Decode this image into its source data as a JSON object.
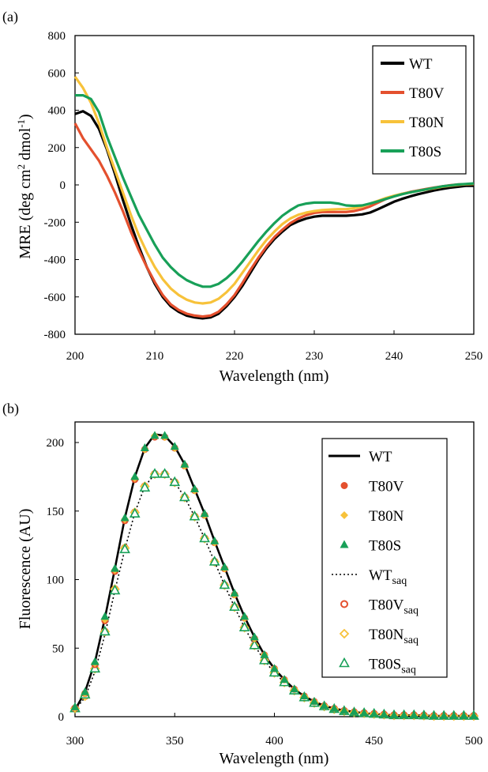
{
  "figure": {
    "panels": [
      {
        "label": "(a)"
      },
      {
        "label": "(b)"
      }
    ]
  },
  "chart_data": [
    {
      "panel": "(a)",
      "type": "line",
      "title": "",
      "xlabel": "Wavelength (nm)",
      "ylabel": "MRE (deg cm2 dmol-1)",
      "ylabel_parts": {
        "base": "MRE (deg cm",
        "sup1": "2",
        "mid": " dmol",
        "sup2": "-1",
        "end": ")"
      },
      "xlim": [
        200,
        250
      ],
      "ylim": [
        -800,
        800
      ],
      "xticks": [
        200,
        210,
        220,
        230,
        240,
        250
      ],
      "yticks": [
        -800,
        -600,
        -400,
        -200,
        0,
        200,
        400,
        600,
        800
      ],
      "grid": false,
      "legend_position": "top-right",
      "x": [
        200,
        201,
        202,
        203,
        204,
        205,
        206,
        207,
        208,
        209,
        210,
        211,
        212,
        213,
        214,
        215,
        216,
        217,
        218,
        219,
        220,
        221,
        222,
        223,
        224,
        225,
        226,
        227,
        228,
        229,
        230,
        231,
        232,
        233,
        234,
        235,
        236,
        237,
        238,
        239,
        240,
        241,
        242,
        243,
        244,
        245,
        246,
        247,
        248,
        249,
        250
      ],
      "series": [
        {
          "name": "WT",
          "color": "#000000",
          "style": "solid",
          "values": [
            380,
            395,
            370,
            300,
            190,
            60,
            -80,
            -210,
            -330,
            -440,
            -530,
            -600,
            -650,
            -680,
            -700,
            -710,
            -715,
            -710,
            -690,
            -650,
            -600,
            -540,
            -470,
            -400,
            -340,
            -290,
            -250,
            -215,
            -195,
            -180,
            -170,
            -165,
            -165,
            -165,
            -165,
            -162,
            -158,
            -148,
            -130,
            -110,
            -90,
            -75,
            -62,
            -50,
            -40,
            -30,
            -22,
            -15,
            -10,
            -5,
            -5
          ]
        },
        {
          "name": "T80V",
          "color": "#e4502e",
          "style": "solid",
          "values": [
            330,
            250,
            190,
            130,
            50,
            -40,
            -140,
            -250,
            -350,
            -440,
            -520,
            -590,
            -640,
            -670,
            -690,
            -700,
            -705,
            -700,
            -680,
            -640,
            -590,
            -525,
            -455,
            -390,
            -330,
            -280,
            -240,
            -205,
            -180,
            -162,
            -150,
            -145,
            -145,
            -145,
            -145,
            -140,
            -130,
            -115,
            -95,
            -75,
            -60,
            -48,
            -38,
            -30,
            -22,
            -15,
            -8,
            -2,
            2,
            4,
            5
          ]
        },
        {
          "name": "T80N",
          "color": "#f7c23a",
          "style": "solid",
          "values": [
            580,
            520,
            440,
            330,
            200,
            80,
            -40,
            -160,
            -270,
            -360,
            -440,
            -505,
            -555,
            -590,
            -615,
            -630,
            -635,
            -630,
            -610,
            -575,
            -530,
            -470,
            -410,
            -350,
            -295,
            -250,
            -210,
            -180,
            -160,
            -148,
            -140,
            -135,
            -132,
            -130,
            -130,
            -125,
            -115,
            -100,
            -85,
            -70,
            -58,
            -48,
            -40,
            -32,
            -25,
            -18,
            -10,
            -5,
            0,
            4,
            5
          ]
        },
        {
          "name": "T80S",
          "color": "#18a058",
          "style": "solid",
          "values": [
            480,
            480,
            460,
            390,
            260,
            150,
            40,
            -60,
            -160,
            -240,
            -320,
            -390,
            -440,
            -480,
            -510,
            -530,
            -545,
            -545,
            -530,
            -500,
            -460,
            -410,
            -355,
            -300,
            -250,
            -205,
            -165,
            -135,
            -110,
            -100,
            -95,
            -95,
            -95,
            -100,
            -110,
            -112,
            -110,
            -100,
            -88,
            -75,
            -62,
            -50,
            -40,
            -32,
            -24,
            -16,
            -8,
            -3,
            2,
            5,
            8
          ]
        }
      ]
    },
    {
      "panel": "(b)",
      "type": "line",
      "title": "",
      "xlabel": "Wavelength (nm)",
      "ylabel": "Fluorescence (AU)",
      "xlim": [
        300,
        500
      ],
      "ylim": [
        0,
        215
      ],
      "xticks": [
        300,
        350,
        400,
        450,
        500
      ],
      "yticks": [
        0,
        50,
        100,
        150,
        200
      ],
      "grid": false,
      "legend_position": "top-right",
      "x": [
        300,
        305,
        310,
        315,
        320,
        325,
        330,
        335,
        340,
        345,
        350,
        355,
        360,
        365,
        370,
        375,
        380,
        385,
        390,
        395,
        400,
        405,
        410,
        415,
        420,
        425,
        430,
        435,
        440,
        445,
        450,
        455,
        460,
        465,
        470,
        475,
        480,
        485,
        490,
        495,
        500
      ],
      "series": [
        {
          "name": "WT",
          "sub": "",
          "color": "#000000",
          "marker": "line-solid",
          "values": [
            5,
            18,
            40,
            72,
            108,
            145,
            175,
            196,
            206,
            205,
            197,
            184,
            166,
            148,
            128,
            109,
            90,
            73,
            58,
            45,
            35,
            27,
            20,
            15,
            11,
            8,
            6,
            4.5,
            3.5,
            2.5,
            2,
            1.5,
            1,
            1,
            1,
            0.8,
            0.5,
            0.5,
            0.5,
            0.5,
            0.5
          ]
        },
        {
          "name": "T80V",
          "sub": "",
          "color": "#e4502e",
          "marker": "filled-circle",
          "values": [
            6,
            17,
            38,
            70,
            106,
            143,
            173,
            195,
            204,
            204,
            196,
            183,
            165,
            147,
            127,
            108,
            89,
            72,
            57,
            45,
            35,
            27,
            20,
            15,
            11,
            8,
            6,
            4.5,
            3.5,
            2.5,
            2,
            1.5,
            1,
            1,
            1,
            0.8,
            0.5,
            0.5,
            0.5,
            0.5,
            0.5
          ]
        },
        {
          "name": "T80N",
          "sub": "",
          "color": "#f7c23a",
          "marker": "filled-diamond",
          "values": [
            6,
            17,
            39,
            71,
            107,
            144,
            174,
            195,
            205,
            204,
            196,
            183,
            165,
            147,
            127,
            108,
            89,
            72,
            57,
            45,
            35,
            27,
            20,
            15,
            11,
            8,
            6,
            4.5,
            3.5,
            2.5,
            2,
            1.5,
            1,
            1,
            1,
            0.8,
            0.5,
            0.5,
            0.5,
            0.5,
            0.5
          ]
        },
        {
          "name": "T80S",
          "sub": "",
          "color": "#18a058",
          "marker": "filled-triangle",
          "values": [
            7,
            18,
            40,
            73,
            108,
            145,
            175,
            196,
            205,
            205,
            197,
            184,
            166,
            148,
            128,
            109,
            90,
            73,
            58,
            45,
            35,
            27,
            20,
            15,
            11,
            8,
            6,
            4.5,
            3.5,
            2.5,
            2,
            1.5,
            1,
            1,
            1,
            0.8,
            0.5,
            0.5,
            0.5,
            0.5,
            0.5
          ]
        },
        {
          "name": "WT",
          "sub": "saq",
          "color": "#000000",
          "marker": "line-dotted",
          "values": [
            5,
            14,
            33,
            60,
            92,
            122,
            149,
            168,
            177,
            177,
            171,
            160,
            146,
            130,
            113,
            96,
            80,
            65,
            52,
            41,
            32,
            25,
            19,
            14,
            10,
            7.5,
            5.5,
            4,
            3,
            2.5,
            2,
            1.5,
            1,
            1,
            1,
            0.8,
            0.5,
            0.5,
            0.5,
            0.5,
            0.5
          ]
        },
        {
          "name": "T80V",
          "sub": "saq",
          "color": "#e4502e",
          "marker": "open-circle",
          "values": [
            6,
            15,
            35,
            62,
            93,
            123,
            149,
            168,
            177,
            177,
            171,
            160,
            146,
            130,
            113,
            96,
            80,
            65,
            52,
            41,
            32,
            25,
            19,
            14,
            10,
            7.5,
            5.5,
            4,
            3,
            2.5,
            2,
            1.5,
            1,
            1,
            1,
            0.8,
            0.5,
            0.5,
            0.5,
            0.5,
            0.5
          ]
        },
        {
          "name": "T80N",
          "sub": "saq",
          "color": "#f7c23a",
          "marker": "open-diamond",
          "values": [
            6,
            15,
            35,
            62,
            93,
            123,
            149,
            168,
            177,
            177,
            171,
            160,
            146,
            130,
            113,
            96,
            80,
            65,
            52,
            41,
            32,
            25,
            19,
            14,
            10,
            7.5,
            5.5,
            4,
            3,
            2.5,
            2,
            1.5,
            1,
            1,
            1,
            0.8,
            0.5,
            0.5,
            0.5,
            0.5,
            0.5
          ]
        },
        {
          "name": "T80S",
          "sub": "saq",
          "color": "#18a058",
          "marker": "open-triangle",
          "values": [
            6,
            16,
            35,
            62,
            92,
            122,
            148,
            167,
            177,
            177,
            171,
            160,
            146,
            130,
            113,
            96,
            80,
            65,
            52,
            41,
            32,
            25,
            19,
            14,
            10,
            7.5,
            5.5,
            4,
            3,
            2.5,
            2,
            1.5,
            1,
            1,
            1,
            0.8,
            0.5,
            0.5,
            0.5,
            0.5,
            0.5
          ]
        }
      ]
    }
  ]
}
